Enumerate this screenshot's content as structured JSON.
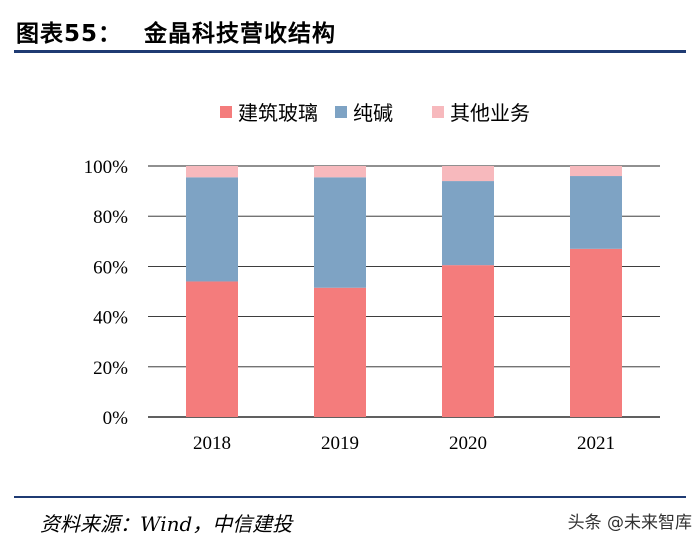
{
  "figure": {
    "number_label": "图表55：",
    "title": "金晶科技营收结构",
    "source": "资料来源：Wind，中信建投",
    "watermark": "头条 @未来智库"
  },
  "chart_data": {
    "type": "bar",
    "stacked": true,
    "title": "金晶科技营收结构",
    "categories": [
      "2018",
      "2019",
      "2020",
      "2021"
    ],
    "series": [
      {
        "name": "建筑玻璃",
        "color": "#f47c7c",
        "values": [
          54,
          51.5,
          60.5,
          67
        ]
      },
      {
        "name": "纯碱",
        "color": "#7ea3c4",
        "values": [
          41.5,
          44,
          33.5,
          29
        ]
      },
      {
        "name": "其他业务",
        "color": "#f7b9bd",
        "values": [
          4.5,
          4.5,
          6,
          4
        ]
      }
    ],
    "ylim": [
      0,
      100
    ],
    "yticks": [
      "0%",
      "20%",
      "40%",
      "60%",
      "80%",
      "100%"
    ],
    "ytick_values": [
      0,
      20,
      40,
      60,
      80,
      100
    ],
    "xlabel": "",
    "ylabel": "",
    "grid": true,
    "legend_position": "top"
  }
}
